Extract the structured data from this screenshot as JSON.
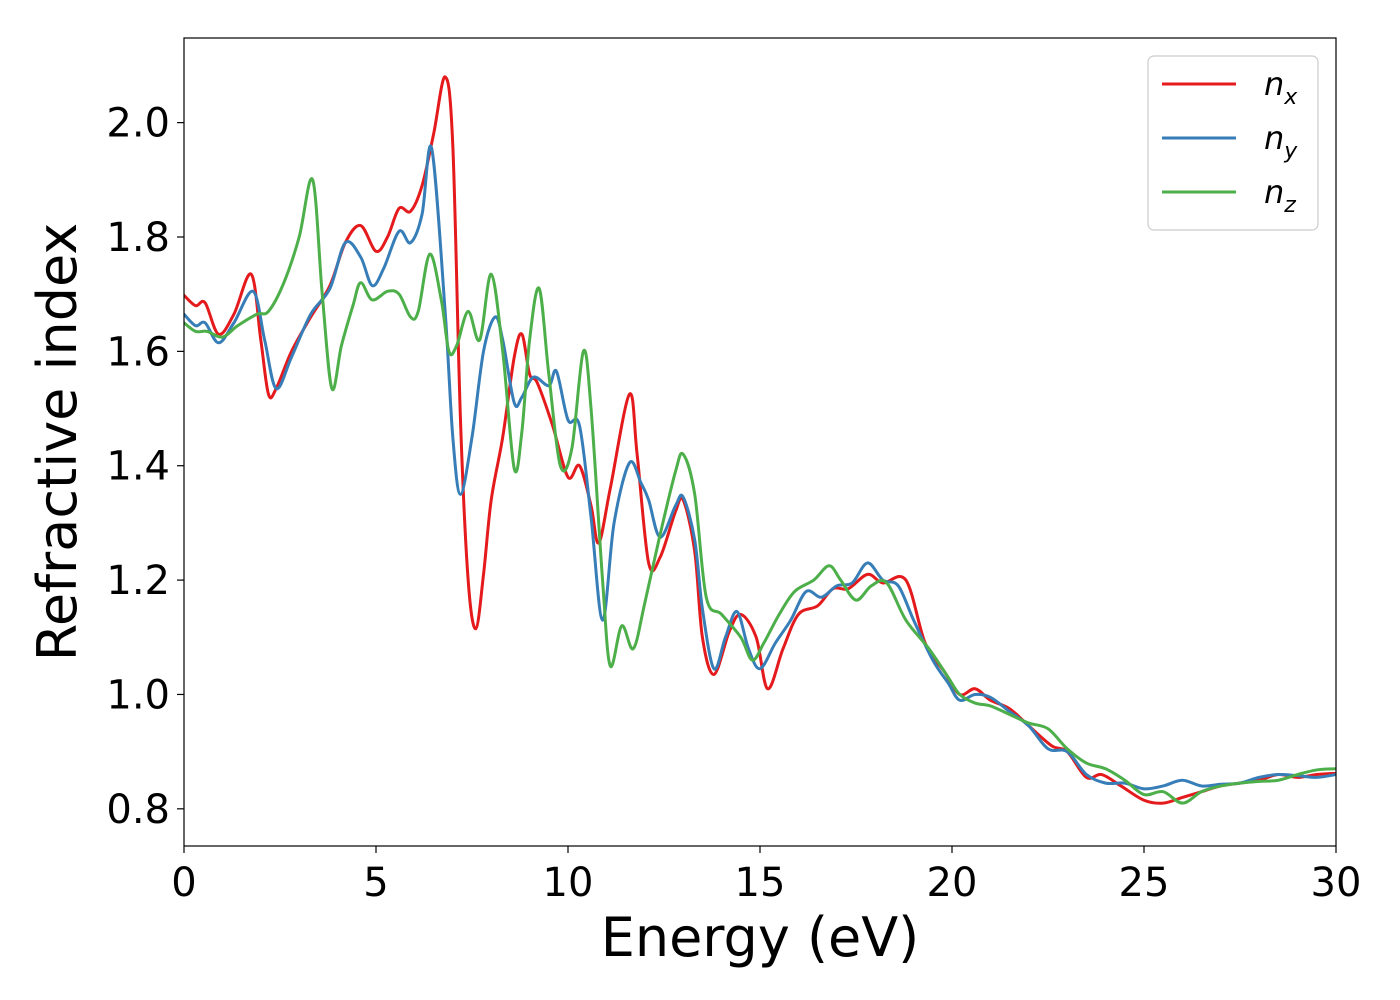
{
  "chart_data": {
    "type": "line",
    "xlabel": "Energy (eV)",
    "ylabel": "Refractive index",
    "xlim": [
      0,
      30
    ],
    "ylim": [
      0.735,
      2.148
    ],
    "xticks": [
      "0",
      "5",
      "10",
      "15",
      "20",
      "25",
      "30"
    ],
    "yticks": [
      "0.8",
      "1.0",
      "1.2",
      "1.4",
      "1.6",
      "1.8",
      "2.0"
    ],
    "grid": false,
    "legend_position": "top-right",
    "series": [
      {
        "name": "n",
        "subscript": "x",
        "color": "#e41a1c",
        "x": [
          0,
          0.3,
          0.55,
          0.9,
          1.3,
          1.75,
          2.0,
          2.2,
          2.4,
          2.8,
          3.3,
          3.8,
          4.2,
          4.6,
          5.0,
          5.3,
          5.6,
          5.9,
          6.2,
          6.5,
          6.8,
          7.0,
          7.2,
          7.4,
          7.6,
          7.8,
          8.0,
          8.3,
          8.6,
          8.8,
          9.0,
          9.2,
          9.6,
          10.0,
          10.3,
          10.6,
          10.8,
          11.1,
          11.6,
          11.8,
          12.1,
          12.4,
          12.8,
          13.0,
          13.3,
          13.5,
          13.8,
          14.2,
          14.5,
          14.9,
          15.2,
          15.6,
          16.0,
          16.5,
          16.9,
          17.3,
          17.8,
          18.2,
          18.8,
          19.3,
          19.8,
          20.2,
          20.6,
          21.0,
          21.5,
          22.0,
          22.6,
          23.0,
          23.5,
          23.9,
          24.4,
          25.0,
          25.5,
          26.0,
          26.5,
          27.0,
          27.5,
          28.0,
          28.5,
          29.0,
          29.5,
          30
        ],
        "y": [
          1.698,
          1.68,
          1.685,
          1.63,
          1.665,
          1.735,
          1.62,
          1.525,
          1.535,
          1.6,
          1.66,
          1.715,
          1.79,
          1.82,
          1.775,
          1.8,
          1.85,
          1.845,
          1.89,
          1.98,
          2.08,
          1.96,
          1.48,
          1.2,
          1.115,
          1.21,
          1.34,
          1.45,
          1.59,
          1.63,
          1.56,
          1.545,
          1.47,
          1.38,
          1.4,
          1.33,
          1.265,
          1.36,
          1.525,
          1.42,
          1.23,
          1.24,
          1.32,
          1.34,
          1.25,
          1.1,
          1.035,
          1.11,
          1.14,
          1.1,
          1.01,
          1.08,
          1.14,
          1.155,
          1.185,
          1.185,
          1.21,
          1.195,
          1.2,
          1.09,
          1.04,
          1.0,
          1.01,
          0.99,
          0.975,
          0.945,
          0.91,
          0.9,
          0.855,
          0.86,
          0.84,
          0.815,
          0.81,
          0.82,
          0.83,
          0.84,
          0.845,
          0.85,
          0.86,
          0.855,
          0.86,
          0.862
        ]
      },
      {
        "name": "n",
        "subscript": "y",
        "color": "#377eb8",
        "x": [
          0,
          0.3,
          0.55,
          0.9,
          1.3,
          1.8,
          2.1,
          2.4,
          2.8,
          3.3,
          3.8,
          4.2,
          4.6,
          4.9,
          5.2,
          5.6,
          5.9,
          6.2,
          6.45,
          6.8,
          7.0,
          7.2,
          7.5,
          7.8,
          8.1,
          8.3,
          8.6,
          8.8,
          9.1,
          9.5,
          9.7,
          10.0,
          10.3,
          10.6,
          10.9,
          11.2,
          11.6,
          11.9,
          12.1,
          12.4,
          12.8,
          13.0,
          13.3,
          13.5,
          13.8,
          14.1,
          14.4,
          14.7,
          15.0,
          15.4,
          15.8,
          16.2,
          16.6,
          17.0,
          17.4,
          17.8,
          18.2,
          18.6,
          19.0,
          19.5,
          19.9,
          20.2,
          20.6,
          21.0,
          21.5,
          22.0,
          22.5,
          23.0,
          23.5,
          24.0,
          24.5,
          25.0,
          25.5,
          26.0,
          26.5,
          27.0,
          27.5,
          28.0,
          28.5,
          29.0,
          29.5,
          30
        ],
        "y": [
          1.665,
          1.645,
          1.65,
          1.615,
          1.65,
          1.705,
          1.62,
          1.535,
          1.59,
          1.665,
          1.71,
          1.79,
          1.765,
          1.715,
          1.745,
          1.81,
          1.79,
          1.84,
          1.955,
          1.67,
          1.45,
          1.35,
          1.45,
          1.6,
          1.66,
          1.62,
          1.51,
          1.52,
          1.555,
          1.54,
          1.565,
          1.48,
          1.47,
          1.31,
          1.13,
          1.3,
          1.405,
          1.37,
          1.34,
          1.275,
          1.33,
          1.345,
          1.27,
          1.15,
          1.045,
          1.1,
          1.145,
          1.08,
          1.045,
          1.09,
          1.13,
          1.18,
          1.17,
          1.19,
          1.195,
          1.23,
          1.2,
          1.19,
          1.13,
          1.06,
          1.02,
          0.99,
          1.0,
          0.995,
          0.97,
          0.945,
          0.905,
          0.9,
          0.86,
          0.845,
          0.845,
          0.835,
          0.84,
          0.85,
          0.84,
          0.843,
          0.845,
          0.855,
          0.86,
          0.858,
          0.855,
          0.86
        ]
      },
      {
        "name": "n",
        "subscript": "z",
        "color": "#4daf4a",
        "x": [
          0,
          0.3,
          0.6,
          1.0,
          1.4,
          1.9,
          2.2,
          2.6,
          3.0,
          3.35,
          3.6,
          3.85,
          4.1,
          4.4,
          4.6,
          4.9,
          5.3,
          5.6,
          5.9,
          6.1,
          6.4,
          6.7,
          6.9,
          7.1,
          7.4,
          7.7,
          8.0,
          8.3,
          8.6,
          8.8,
          9.0,
          9.25,
          9.5,
          9.8,
          10.1,
          10.4,
          10.6,
          10.9,
          11.1,
          11.4,
          11.7,
          12.0,
          12.4,
          12.8,
          13.0,
          13.3,
          13.6,
          14.0,
          14.5,
          14.8,
          15.1,
          15.5,
          15.9,
          16.4,
          16.8,
          17.1,
          17.5,
          17.9,
          18.3,
          18.8,
          19.4,
          19.9,
          20.2,
          20.6,
          21.0,
          21.5,
          22.0,
          22.5,
          23.0,
          23.5,
          24.0,
          24.5,
          25.0,
          25.5,
          26.0,
          26.5,
          27.0,
          27.5,
          28.0,
          28.5,
          29.0,
          29.5,
          30
        ],
        "y": [
          1.65,
          1.635,
          1.635,
          1.625,
          1.645,
          1.665,
          1.67,
          1.72,
          1.8,
          1.9,
          1.7,
          1.535,
          1.61,
          1.68,
          1.72,
          1.69,
          1.705,
          1.7,
          1.66,
          1.67,
          1.77,
          1.69,
          1.6,
          1.61,
          1.67,
          1.62,
          1.735,
          1.6,
          1.395,
          1.46,
          1.62,
          1.71,
          1.56,
          1.4,
          1.43,
          1.6,
          1.5,
          1.2,
          1.05,
          1.12,
          1.08,
          1.16,
          1.28,
          1.39,
          1.42,
          1.35,
          1.17,
          1.14,
          1.1,
          1.06,
          1.09,
          1.14,
          1.18,
          1.2,
          1.225,
          1.2,
          1.165,
          1.19,
          1.195,
          1.13,
          1.08,
          1.03,
          1.0,
          0.985,
          0.98,
          0.965,
          0.95,
          0.94,
          0.905,
          0.88,
          0.87,
          0.85,
          0.825,
          0.83,
          0.81,
          0.83,
          0.84,
          0.845,
          0.848,
          0.85,
          0.86,
          0.868,
          0.87
        ]
      }
    ]
  }
}
